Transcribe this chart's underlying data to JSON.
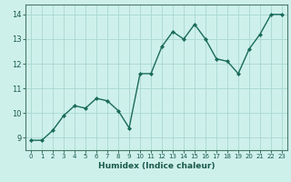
{
  "x": [
    0,
    1,
    2,
    3,
    4,
    5,
    6,
    7,
    8,
    9,
    10,
    11,
    12,
    13,
    14,
    15,
    16,
    17,
    18,
    19,
    20,
    21,
    22,
    23
  ],
  "y": [
    8.9,
    8.9,
    9.3,
    9.9,
    10.3,
    10.2,
    10.6,
    10.5,
    10.1,
    9.4,
    11.6,
    11.6,
    12.7,
    13.3,
    13.0,
    13.6,
    13.0,
    12.2,
    12.1,
    11.6,
    12.6,
    13.2,
    14.0,
    14.0
  ],
  "xlabel": "Humidex (Indice chaleur)",
  "xlim": [
    -0.5,
    23.5
  ],
  "ylim": [
    8.5,
    14.4
  ],
  "yticks": [
    9,
    10,
    11,
    12,
    13,
    14
  ],
  "xticks": [
    0,
    1,
    2,
    3,
    4,
    5,
    6,
    7,
    8,
    9,
    10,
    11,
    12,
    13,
    14,
    15,
    16,
    17,
    18,
    19,
    20,
    21,
    22,
    23
  ],
  "line_color": "#1a6b5a",
  "marker_color": "#1a6b5a",
  "bg_color": "#cef0eb",
  "grid_color": "#aad8d0",
  "axis_color": "#4a7a6a",
  "label_color": "#1a5a4a",
  "tick_color": "#1a5a4a"
}
